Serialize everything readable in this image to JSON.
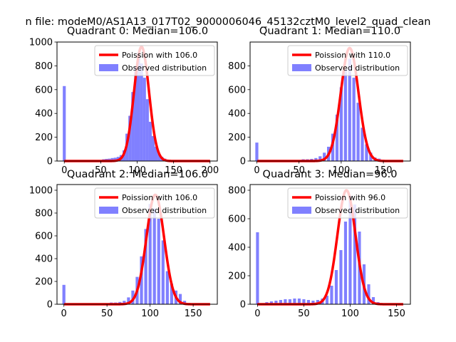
{
  "figure": {
    "title": "n file: modeM0/AS1A13_017T02_9000006046_45132cztM0_level2_quad_clean"
  },
  "chart_data": [
    {
      "type": "bar",
      "title": "Quadrant 0: Median=106.0",
      "xlim": [
        -10,
        210
      ],
      "ylim": [
        0,
        1000
      ],
      "xticks": [
        0,
        50,
        100,
        150,
        200
      ],
      "yticks": [
        0,
        200,
        400,
        600,
        800,
        1000
      ],
      "legend_position": "top-right",
      "poisson": {
        "label": "Poission with 106.0",
        "mean": 106.0,
        "peak": 960,
        "color": "#ff0000"
      },
      "histogram": {
        "label": "Observed distribution",
        "color": "#8080ff",
        "bin_width": 4.1,
        "x": [
          0,
          54,
          58,
          62,
          66,
          70,
          74,
          78,
          82,
          86,
          90,
          94,
          98,
          102,
          106,
          110,
          114,
          118,
          122,
          126,
          130,
          134,
          138,
          142,
          146
        ],
        "values": [
          630,
          15,
          18,
          20,
          25,
          28,
          35,
          50,
          90,
          230,
          380,
          580,
          790,
          910,
          820,
          700,
          520,
          330,
          210,
          120,
          60,
          35,
          20,
          10,
          5
        ]
      }
    },
    {
      "type": "bar",
      "title": "Quadrant 1: Median=110.0",
      "xlim": [
        -8,
        182
      ],
      "ylim": [
        0,
        1000
      ],
      "xticks": [
        0,
        50,
        100,
        150
      ],
      "yticks": [
        0,
        200,
        400,
        600,
        800
      ],
      "legend_position": "top-right",
      "poisson": {
        "label": "Poission with 110.0",
        "mean": 110.0,
        "peak": 950,
        "color": "#ff0000"
      },
      "histogram": {
        "label": "Observed distribution",
        "color": "#8080ff",
        "bin_width": 3.6,
        "x": [
          0,
          55,
          60,
          65,
          70,
          75,
          80,
          85,
          90,
          95,
          100,
          105,
          110,
          115,
          120,
          125,
          130,
          135,
          140,
          145
        ],
        "values": [
          155,
          15,
          15,
          18,
          25,
          40,
          70,
          120,
          230,
          390,
          620,
          770,
          860,
          700,
          490,
          280,
          140,
          70,
          30,
          20
        ]
      }
    },
    {
      "type": "bar",
      "title": "Quadrant 2: Median=106.0",
      "xlim": [
        -8,
        178
      ],
      "ylim": [
        0,
        1050
      ],
      "xticks": [
        0,
        50,
        100,
        150
      ],
      "yticks": [
        0,
        200,
        400,
        600,
        800,
        1000
      ],
      "legend_position": "top-right",
      "poisson": {
        "label": "Poission with 106.0",
        "mean": 106.0,
        "peak": 960,
        "color": "#ff0000"
      },
      "histogram": {
        "label": "Observed distribution",
        "color": "#8080ff",
        "bin_width": 3.5,
        "x": [
          0,
          55,
          60,
          65,
          70,
          75,
          80,
          85,
          90,
          95,
          100,
          105,
          110,
          115,
          120,
          125,
          130,
          135,
          140
        ],
        "values": [
          170,
          15,
          15,
          20,
          30,
          60,
          120,
          240,
          420,
          660,
          880,
          840,
          750,
          560,
          290,
          180,
          120,
          90,
          30
        ]
      }
    },
    {
      "type": "bar",
      "title": "Quadrant 3: Median=96.0",
      "xlim": [
        -8,
        165
      ],
      "ylim": [
        0,
        840
      ],
      "xticks": [
        0,
        50,
        100,
        150
      ],
      "yticks": [
        0,
        200,
        400,
        600,
        800
      ],
      "legend_position": "top-right",
      "poisson": {
        "label": "Poission with 96.0",
        "mean": 96.0,
        "peak": 800,
        "color": "#ff0000"
      },
      "histogram": {
        "label": "Observed distribution",
        "color": "#8080ff",
        "bin_width": 3.2,
        "x": [
          0,
          10,
          15,
          20,
          25,
          30,
          35,
          40,
          45,
          50,
          55,
          60,
          65,
          70,
          75,
          80,
          85,
          90,
          95,
          100,
          105,
          110,
          115,
          120,
          125,
          130
        ],
        "values": [
          505,
          15,
          20,
          25,
          30,
          35,
          35,
          40,
          40,
          35,
          30,
          25,
          30,
          40,
          60,
          130,
          240,
          380,
          580,
          760,
          700,
          510,
          280,
          140,
          50,
          15
        ]
      }
    }
  ]
}
